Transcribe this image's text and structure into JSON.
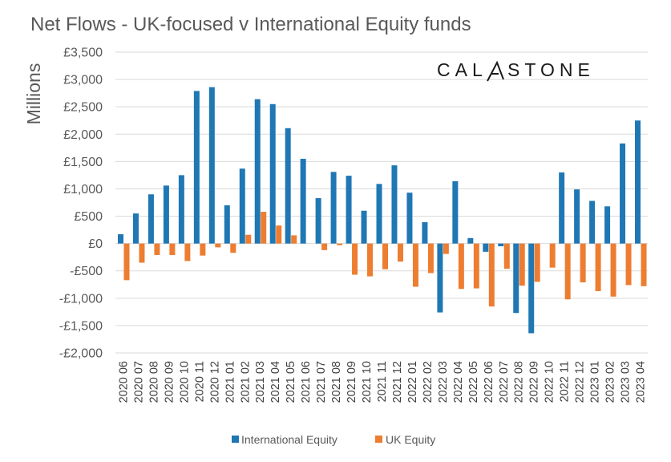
{
  "title": "Net Flows - UK-focused v International Equity funds",
  "logo": {
    "text_left": "CAL",
    "text_right": "STONE"
  },
  "colors": {
    "international": "#1F77B4",
    "uk": "#ED7D31",
    "gridline": "#D9D9D9",
    "text": "#595959"
  },
  "chart_data": {
    "type": "bar",
    "title": "Net Flows - UK-focused v International Equity funds",
    "ylabel": "Millions",
    "xlabel": "",
    "ylim": [
      -2000,
      3500
    ],
    "yticks": [
      -2000,
      -1500,
      -1000,
      -500,
      0,
      500,
      1000,
      1500,
      2000,
      2500,
      3000,
      3500
    ],
    "ytick_labels": [
      "-£2,000",
      "-£1,500",
      "-£1,000",
      "-£500",
      "£0",
      "£500",
      "£1,000",
      "£1,500",
      "£2,000",
      "£2,500",
      "£3,000",
      "£3,500"
    ],
    "grid": true,
    "legend_position": "bottom",
    "categories": [
      "2020 06",
      "2020 07",
      "2020 08",
      "2020 09",
      "2020 10",
      "2020 11",
      "2020 12",
      "2021 01",
      "2021 02",
      "2021 03",
      "2021 04",
      "2021 05",
      "2021 06",
      "2021 07",
      "2021 08",
      "2021 09",
      "2021 10",
      "2021 11",
      "2021 12",
      "2022 01",
      "2022 02",
      "2022 03",
      "2022 04",
      "2022 05",
      "2022 06",
      "2022 07",
      "2022 08",
      "2022 09",
      "2022 10",
      "2022 11",
      "2022 12",
      "2023 01",
      "2023 02",
      "2023 03",
      "2023 04"
    ],
    "series": [
      {
        "name": "International Equity",
        "color": "#1F77B4",
        "values": [
          170,
          550,
          900,
          1060,
          1250,
          2790,
          2860,
          700,
          1370,
          2640,
          2550,
          2110,
          1550,
          830,
          1310,
          1240,
          600,
          1090,
          1430,
          930,
          390,
          -1260,
          1140,
          100,
          -150,
          -50,
          -1270,
          -1640,
          0,
          1300,
          990,
          780,
          680,
          1830,
          2250
        ]
      },
      {
        "name": "UK Equity",
        "color": "#ED7D31",
        "values": [
          -670,
          -350,
          -210,
          -210,
          -320,
          -220,
          -70,
          -170,
          160,
          580,
          330,
          150,
          0,
          -120,
          -30,
          -570,
          -600,
          -470,
          -330,
          -790,
          -540,
          -190,
          -830,
          -820,
          -1150,
          -460,
          -770,
          -700,
          -440,
          -1020,
          -710,
          -870,
          -970,
          -760,
          -780
        ]
      }
    ]
  }
}
